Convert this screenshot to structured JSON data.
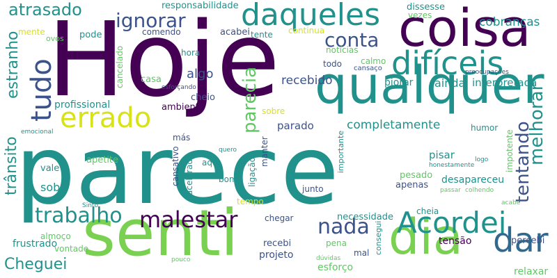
{
  "colors": {
    "background": "#ffffff",
    "palette": [
      "#440154",
      "#3b528b",
      "#21918c",
      "#5ec962",
      "#fde725"
    ]
  },
  "words": [
    {
      "text": "Hoje",
      "color": "#440154"
    },
    {
      "text": "parece",
      "color": "#21918c"
    },
    {
      "text": "senti",
      "color": "#7ad151"
    },
    {
      "text": "coisa",
      "color": "#440154"
    },
    {
      "text": "qualquer",
      "color": "#21918c"
    },
    {
      "text": "dia",
      "color": "#7ad151"
    },
    {
      "text": "dar",
      "color": "#31688e"
    },
    {
      "text": "Acordei",
      "color": "#21918c"
    },
    {
      "text": "daqueles",
      "color": "#21918c"
    },
    {
      "text": "difíceis",
      "color": "#21918c"
    },
    {
      "text": "errado",
      "color": "#d8e219"
    },
    {
      "text": "tudo",
      "color": "#3b528b"
    },
    {
      "text": "malestar",
      "color": "#440154"
    },
    {
      "text": "trabalho",
      "color": "#21918c"
    },
    {
      "text": "nada",
      "color": "#3b528b"
    },
    {
      "text": "tentando",
      "color": "#3b528b"
    },
    {
      "text": "melhorar",
      "color": "#21918c"
    },
    {
      "text": "ignorar",
      "color": "#3b528b"
    },
    {
      "text": "conta",
      "color": "#3b528b"
    },
    {
      "text": "parecia",
      "color": "#5ec962"
    },
    {
      "text": "atrasado",
      "color": "#21918c"
    },
    {
      "text": "estranho",
      "color": "#21918c"
    },
    {
      "text": "trânsito",
      "color": "#21918c"
    },
    {
      "text": "Cheguei",
      "color": "#21918c"
    },
    {
      "text": "completamente",
      "color": "#21918c"
    },
    {
      "text": "recebido",
      "color": "#3b528b"
    },
    {
      "text": "cobranças",
      "color": "#21918c"
    },
    {
      "text": "algo",
      "color": "#3b528b"
    },
    {
      "text": "ainda",
      "color": "#21918c"
    },
    {
      "text": "interpretada",
      "color": "#21918c"
    },
    {
      "text": "responsabilidade",
      "color": "#21918c"
    },
    {
      "text": "profissional",
      "color": "#21918c"
    },
    {
      "text": "parado",
      "color": "#3b528b"
    },
    {
      "text": "piorar",
      "color": "#21918c"
    },
    {
      "text": "sob",
      "color": "#21918c"
    },
    {
      "text": "vale",
      "color": "#21918c"
    },
    {
      "text": "apetite",
      "color": "#5ec962"
    },
    {
      "text": "frustrado",
      "color": "#21918c"
    },
    {
      "text": "almoço",
      "color": "#5ec962"
    },
    {
      "text": "vontade",
      "color": "#5ec962"
    },
    {
      "text": "projeto",
      "color": "#3b528b"
    },
    {
      "text": "recebi",
      "color": "#3b528b"
    },
    {
      "text": "necessidade",
      "color": "#21918c"
    },
    {
      "text": "desapareceu",
      "color": "#21918c"
    },
    {
      "text": "apenas",
      "color": "#3b528b"
    },
    {
      "text": "pesado",
      "color": "#5ec962"
    },
    {
      "text": "pisar",
      "color": "#21918c"
    },
    {
      "text": "cheia",
      "color": "#21918c"
    },
    {
      "text": "tensão",
      "color": "#440154"
    },
    {
      "text": "percebi",
      "color": "#3b528b"
    },
    {
      "text": "esforço",
      "color": "#5ec962"
    },
    {
      "text": "relaxar",
      "color": "#5ec962"
    },
    {
      "text": "dissesse",
      "color": "#21918c"
    },
    {
      "text": "vezes",
      "color": "#5ec962"
    },
    {
      "text": "mente",
      "color": "#d8e219"
    },
    {
      "text": "ovos",
      "color": "#5ec962"
    },
    {
      "text": "pode",
      "color": "#21918c"
    },
    {
      "text": "comendo",
      "color": "#3b528b"
    },
    {
      "text": "acabei",
      "color": "#3b528b"
    },
    {
      "text": "tente",
      "color": "#21918c"
    },
    {
      "text": "continua",
      "color": "#d8e219"
    },
    {
      "text": "notícias",
      "color": "#5ec962"
    },
    {
      "text": "todo",
      "color": "#3b528b"
    },
    {
      "text": "calmo",
      "color": "#5ec962"
    },
    {
      "text": "cansaço",
      "color": "#3b528b"
    },
    {
      "text": "preocupações",
      "color": "#3b528b"
    },
    {
      "text": "hora",
      "color": "#21918c"
    },
    {
      "text": "cancelado",
      "color": "#5ec962"
    },
    {
      "text": "casa",
      "color": "#5ec962"
    },
    {
      "text": "esforçando",
      "color": "#3b528b"
    },
    {
      "text": "cheio",
      "color": "#3b528b"
    },
    {
      "text": "ambiente",
      "color": "#440154"
    },
    {
      "text": "sobre",
      "color": "#d8e219"
    },
    {
      "text": "humor",
      "color": "#21918c"
    },
    {
      "text": "emocional",
      "color": "#21918c"
    },
    {
      "text": "más",
      "color": "#3b528b"
    },
    {
      "text": "quero",
      "color": "#21918c"
    },
    {
      "text": "importante",
      "color": "#21918c"
    },
    {
      "text": "aqui",
      "color": "#21918c"
    },
    {
      "text": "bom",
      "color": "#21918c"
    },
    {
      "text": "cansativo",
      "color": "#3b528b"
    },
    {
      "text": "acelerada",
      "color": "#21918c"
    },
    {
      "text": "ligação",
      "color": "#21918c"
    },
    {
      "text": "manter",
      "color": "#3b528b"
    },
    {
      "text": "tempo",
      "color": "#d8e219"
    },
    {
      "text": "junto",
      "color": "#3b528b"
    },
    {
      "text": "chegar",
      "color": "#3b528b"
    },
    {
      "text": "consegui",
      "color": "#21918c"
    },
    {
      "text": "pena",
      "color": "#5ec962"
    },
    {
      "text": "mal",
      "color": "#3b528b"
    },
    {
      "text": "dúvidas",
      "color": "#5ec962"
    },
    {
      "text": "pouco",
      "color": "#5ec962"
    },
    {
      "text": "Sinto",
      "color": "#21918c"
    },
    {
      "text": "honestamente",
      "color": "#21918c"
    },
    {
      "text": "logo",
      "color": "#21918c"
    },
    {
      "text": "impotente",
      "color": "#5ec962"
    },
    {
      "text": "passar",
      "color": "#5ec962"
    },
    {
      "text": "colhendo",
      "color": "#5ec962"
    },
    {
      "text": "acabe",
      "color": "#5ec962"
    }
  ]
}
